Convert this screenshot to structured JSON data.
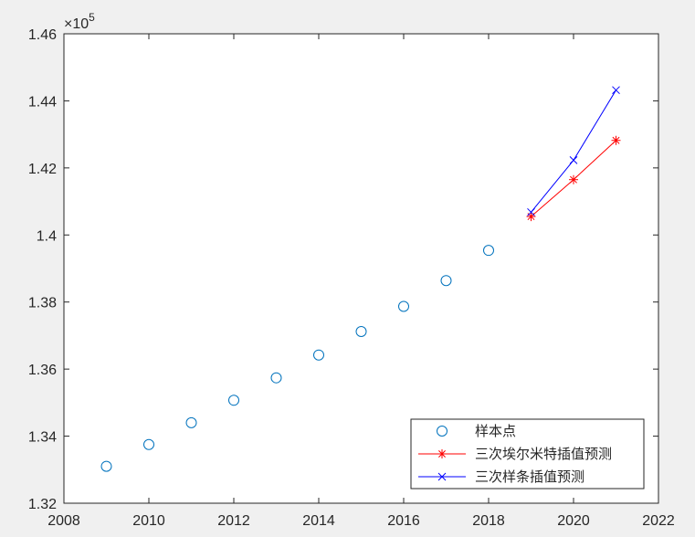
{
  "chart_data": {
    "type": "line",
    "title": "",
    "xlabel": "",
    "ylabel": "",
    "xlim": [
      2008,
      2022
    ],
    "ylim": [
      132000,
      146000
    ],
    "x_ticks": [
      2008,
      2010,
      2012,
      2014,
      2016,
      2018,
      2020,
      2022
    ],
    "x_tick_labels": [
      "2008",
      "2010",
      "2012",
      "2014",
      "2016",
      "2018",
      "2020",
      "2022"
    ],
    "y_ticks": [
      132000,
      134000,
      136000,
      138000,
      140000,
      142000,
      144000,
      146000
    ],
    "y_tick_labels": [
      "1.32",
      "1.34",
      "1.36",
      "1.38",
      "1.4",
      "1.42",
      "1.44",
      "1.46"
    ],
    "y_exponent_label": "×10",
    "y_exponent_power": "5",
    "grid": false,
    "legend_position": "bottom-right",
    "series": [
      {
        "name": "样本点",
        "marker": "circle",
        "line": false,
        "color": "#0072BD",
        "x": [
          2009,
          2010,
          2011,
          2012,
          2013,
          2014,
          2015,
          2016,
          2017,
          2018
        ],
        "y": [
          133100,
          133750,
          134400,
          135070,
          135740,
          136420,
          137120,
          137870,
          138640,
          139540
        ]
      },
      {
        "name": "三次埃尔米特插值预测",
        "marker": "asterisk",
        "line": true,
        "color": "#FF0000",
        "x": [
          2019,
          2020,
          2021
        ],
        "y": [
          140550,
          141650,
          142820
        ]
      },
      {
        "name": "三次样条插值预测",
        "marker": "x",
        "line": true,
        "color": "#0000FF",
        "x": [
          2019,
          2020,
          2021
        ],
        "y": [
          140680,
          142230,
          144320
        ]
      }
    ]
  }
}
